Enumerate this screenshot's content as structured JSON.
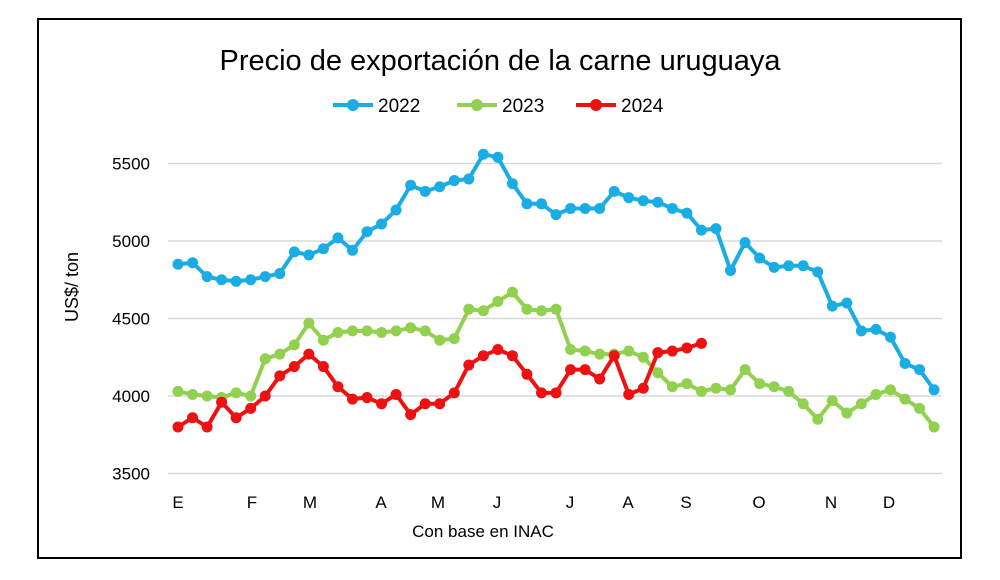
{
  "chart_data": {
    "type": "line",
    "title": "Precio de exportación de la carne uruguaya",
    "ylabel": "US$/ ton",
    "xlabel": "Con base en INAC",
    "ylim": [
      3500,
      5600
    ],
    "yticks": [
      3500,
      4000,
      4500,
      5000,
      5500
    ],
    "grid": true,
    "legend": "top",
    "month_labels": [
      "E",
      "F",
      "M",
      "A",
      "M",
      "J",
      "J",
      "A",
      "S",
      "O",
      "N",
      "D"
    ],
    "series": [
      {
        "name": "2022",
        "color": "#1AADE4",
        "values": [
          4850,
          4860,
          4770,
          4750,
          4740,
          4750,
          4770,
          4790,
          4930,
          4910,
          4950,
          5020,
          4940,
          5060,
          5110,
          5200,
          5360,
          5320,
          5350,
          5390,
          5400,
          5560,
          5540,
          5370,
          5240,
          5240,
          5170,
          5210,
          5210,
          5210,
          5320,
          5280,
          5260,
          5250,
          5210,
          5180,
          5070,
          5080,
          4810,
          4990,
          4890,
          4830,
          4840,
          4840,
          4800,
          4580,
          4600,
          4420,
          4430,
          4380,
          4210,
          4170,
          4040
        ]
      },
      {
        "name": "2023",
        "color": "#92D050",
        "values": [
          4030,
          4010,
          4000,
          3990,
          4020,
          4000,
          4240,
          4270,
          4330,
          4470,
          4360,
          4410,
          4420,
          4420,
          4410,
          4420,
          4440,
          4420,
          4360,
          4370,
          4560,
          4550,
          4610,
          4670,
          4560,
          4550,
          4560,
          4300,
          4290,
          4270,
          4270,
          4290,
          4250,
          4150,
          4060,
          4080,
          4030,
          4050,
          4040,
          4170,
          4080,
          4060,
          4030,
          3950,
          3850,
          3970,
          3890,
          3950,
          4010,
          4040,
          3980,
          3920,
          3800
        ]
      },
      {
        "name": "2024",
        "color": "#EE1111",
        "values": [
          3800,
          3860,
          3800,
          3960,
          3860,
          3920,
          4000,
          4130,
          4190,
          4270,
          4190,
          4060,
          3980,
          3990,
          3950,
          4010,
          3880,
          3950,
          3950,
          4020,
          4200,
          4260,
          4300,
          4260,
          4140,
          4020,
          4020,
          4170,
          4170,
          4110,
          4260,
          4010,
          4050,
          4280,
          4290,
          4310,
          4340
        ]
      }
    ]
  }
}
